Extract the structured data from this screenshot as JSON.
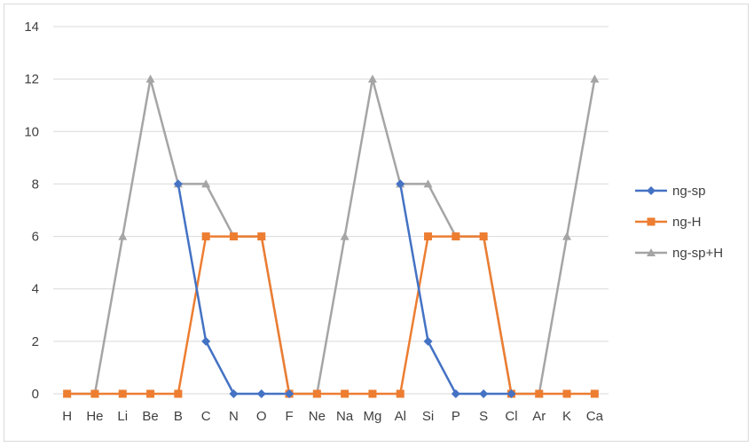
{
  "chart_data": {
    "type": "line",
    "title": "",
    "xlabel": "",
    "ylabel": "",
    "categories": [
      "H",
      "He",
      "Li",
      "Be",
      "B",
      "C",
      "N",
      "O",
      "F",
      "Ne",
      "Na",
      "Mg",
      "Al",
      "Si",
      "P",
      "S",
      "Cl",
      "Ar",
      "K",
      "Ca"
    ],
    "ylim": [
      0,
      14
    ],
    "yticks": [
      0,
      2,
      4,
      6,
      8,
      10,
      12,
      14
    ],
    "grid": "horizontal",
    "legend_position": "right",
    "series": [
      {
        "name": "ng-sp",
        "color": "#4472c4",
        "marker": "diamond",
        "values": [
          null,
          null,
          null,
          null,
          8,
          2,
          0,
          0,
          0,
          null,
          null,
          null,
          8,
          2,
          0,
          0,
          0,
          null,
          null,
          null
        ]
      },
      {
        "name": "ng-H",
        "color": "#ed7d31",
        "marker": "square",
        "values": [
          0,
          0,
          0,
          0,
          0,
          6,
          6,
          6,
          0,
          0,
          0,
          0,
          0,
          6,
          6,
          6,
          0,
          0,
          0,
          0
        ]
      },
      {
        "name": "ng-sp+H",
        "color": "#a5a5a5",
        "marker": "triangle",
        "values": [
          0,
          0,
          6,
          12,
          8,
          8,
          6,
          6,
          0,
          0,
          6,
          12,
          8,
          8,
          6,
          6,
          0,
          0,
          6,
          12
        ]
      }
    ]
  }
}
